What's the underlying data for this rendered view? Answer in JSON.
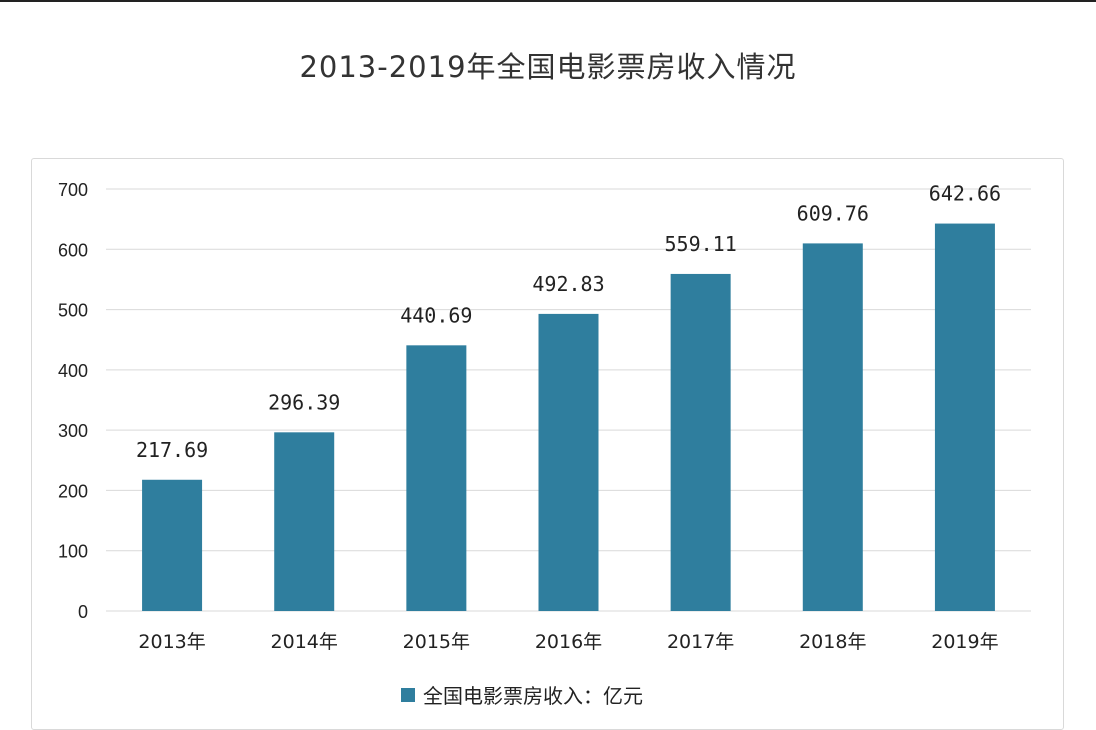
{
  "chart_data": {
    "type": "bar",
    "title": "2013-2019年全国电影票房收入情况",
    "categories": [
      "2013年",
      "2014年",
      "2015年",
      "2016年",
      "2017年",
      "2018年",
      "2019年"
    ],
    "series": [
      {
        "name": "全国电影票房收入：亿元",
        "values": [
          217.69,
          296.39,
          440.69,
          492.83,
          559.11,
          609.76,
          642.66
        ]
      }
    ],
    "data_labels": [
      "217.69",
      "296.39",
      "440.69",
      "492.83",
      "559.11",
      "609.76",
      "642.66"
    ],
    "ylim": [
      0,
      700
    ],
    "yticks": [
      0,
      100,
      200,
      300,
      400,
      500,
      600,
      700
    ],
    "grid": true,
    "legend_position": "bottom",
    "colors": {
      "bar": "#2f7e9e",
      "grid": "#d9d9d9"
    }
  }
}
